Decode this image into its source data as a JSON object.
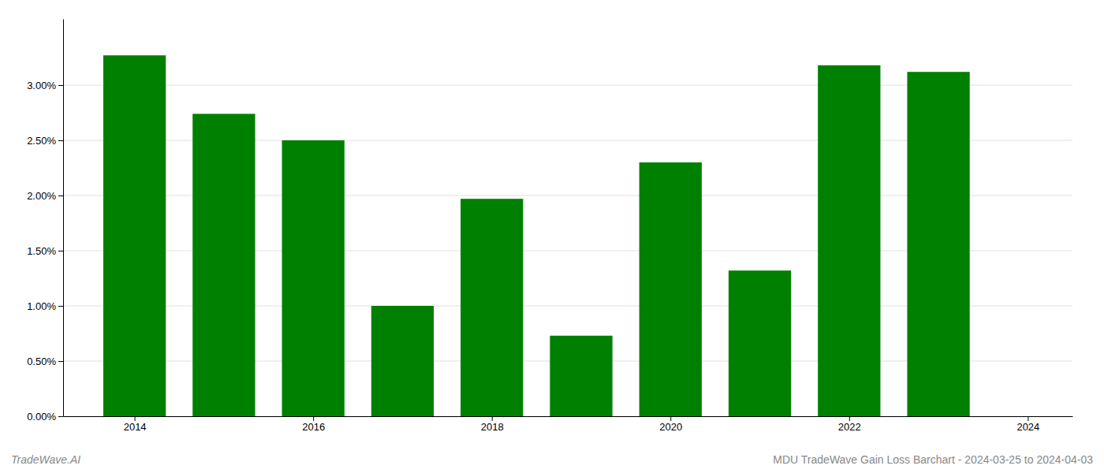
{
  "chart_data": {
    "type": "bar",
    "x": [
      2014,
      2015,
      2016,
      2017,
      2018,
      2019,
      2020,
      2021,
      2022,
      2023
    ],
    "values": [
      0.0327,
      0.0274,
      0.025,
      0.01,
      0.0197,
      0.0073,
      0.023,
      0.0132,
      0.0318,
      0.0312
    ],
    "color": "#008000",
    "xlim": [
      2013.2,
      2024.5
    ],
    "xticks": [
      2014,
      2016,
      2018,
      2020,
      2022,
      2024
    ],
    "ylim": [
      0,
      0.036
    ],
    "yticks": [
      {
        "value": 0.0,
        "label": "0.00%"
      },
      {
        "value": 0.005,
        "label": "0.50%"
      },
      {
        "value": 0.01,
        "label": "1.00%"
      },
      {
        "value": 0.015,
        "label": "1.50%"
      },
      {
        "value": 0.02,
        "label": "2.00%"
      },
      {
        "value": 0.025,
        "label": "2.50%"
      },
      {
        "value": 0.03,
        "label": "3.00%"
      }
    ],
    "grid": true,
    "annotations": [
      "TradeWave.AI",
      "MDU TradeWave Gain Loss Barchart - 2024-03-25 to 2024-04-03"
    ]
  }
}
